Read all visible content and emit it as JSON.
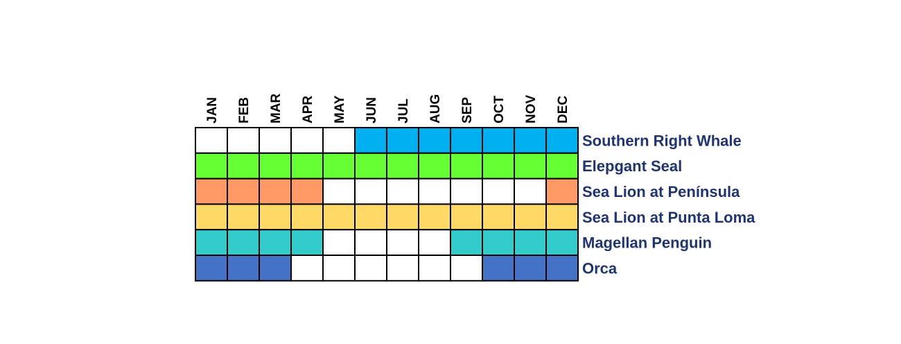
{
  "chart_data": {
    "type": "heatmap",
    "title": "",
    "months": [
      "JAN",
      "FEB",
      "MAR",
      "APR",
      "MAY",
      "JUN",
      "JUL",
      "AUG",
      "SEP",
      "OCT",
      "NOV",
      "DEC"
    ],
    "rows": [
      {
        "name": "Southern Right Whale",
        "color": "#00b0f0",
        "active": [
          0,
          0,
          0,
          0,
          0,
          1,
          1,
          1,
          1,
          1,
          1,
          1
        ]
      },
      {
        "name": "Elepgant Seal",
        "color": "#66ff33",
        "active": [
          1,
          1,
          1,
          1,
          1,
          1,
          1,
          1,
          1,
          1,
          1,
          1
        ]
      },
      {
        "name": "Sea Lion at Península",
        "color": "#ff9966",
        "active": [
          1,
          1,
          1,
          1,
          0,
          0,
          0,
          0,
          0,
          0,
          0,
          1
        ]
      },
      {
        "name": "Sea Lion at Punta Loma",
        "color": "#ffd966",
        "active": [
          1,
          1,
          1,
          1,
          1,
          1,
          1,
          1,
          1,
          1,
          1,
          1
        ]
      },
      {
        "name": "Magellan Penguin",
        "color": "#33cccc",
        "active": [
          1,
          1,
          1,
          1,
          0,
          0,
          0,
          0,
          1,
          1,
          1,
          1
        ]
      },
      {
        "name": "Orca",
        "color": "#4472c4",
        "active": [
          1,
          1,
          1,
          0,
          0,
          0,
          0,
          0,
          0,
          1,
          1,
          1
        ]
      }
    ],
    "inactive_color": "#ffffff",
    "border_color": "#000000",
    "label_color": "#1f3470"
  }
}
